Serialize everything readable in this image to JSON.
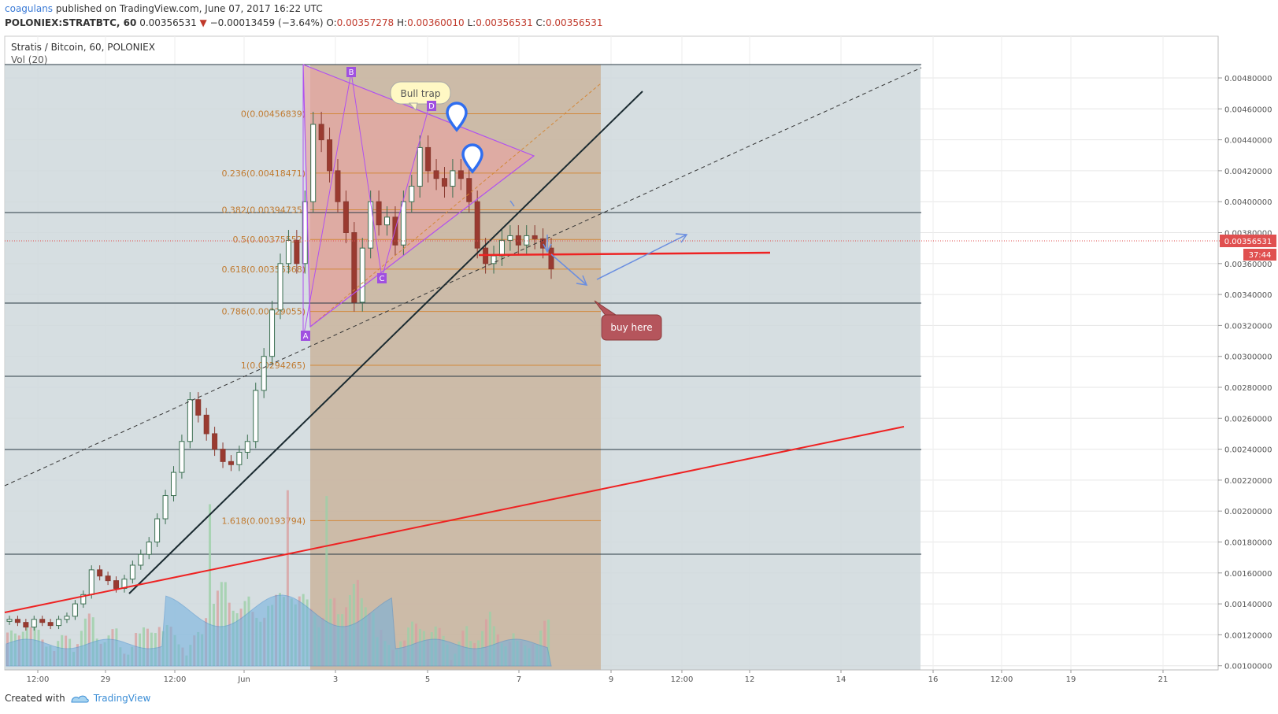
{
  "header": {
    "author": "coagulans",
    "published": "published on TradingView.com, June 07, 2017 16:22 UTC",
    "symbol": "POLONIEX:STRATBTC, 60",
    "last": "0.00356531",
    "change_arrow": "▼",
    "change": "−0.00013459 (−3.64%)",
    "o_label": "O:",
    "o": "0.00357278",
    "h_label": "H:",
    "h": "0.00360010",
    "l_label": "L:",
    "l": "0.00356531",
    "c_label": "C:",
    "c": "0.00356531"
  },
  "chart_title": "Stratis / Bitcoin, 60, POLONIEX",
  "vol_label": "Vol (20)",
  "price_axis": {
    "ticks": [
      "0.00480000",
      "0.00460000",
      "0.00440000",
      "0.00420000",
      "0.00400000",
      "0.00380000",
      "0.00360000",
      "0.00340000",
      "0.00320000",
      "0.00300000",
      "0.00280000",
      "0.00260000",
      "0.00240000",
      "0.00220000",
      "0.00200000",
      "0.00180000",
      "0.00160000",
      "0.00140000",
      "0.00120000",
      "0.00100000"
    ],
    "current_price_label": "0.00356531",
    "countdown": "37:44"
  },
  "time_axis": {
    "ticks": [
      "12:00",
      "29",
      "12:00",
      "Jun",
      "3",
      "5",
      "7",
      "9",
      "12:00",
      "12",
      "14",
      "16",
      "12:00",
      "19",
      "21"
    ]
  },
  "fib": [
    {
      "label": "0(0.00456839)"
    },
    {
      "label": "0.236(0.00418471)"
    },
    {
      "label": "0.382(0.00394735)"
    },
    {
      "label": "0.5(0.00375552)"
    },
    {
      "label": "0.618(0.00356368)"
    },
    {
      "label": "0.786(0.00329055)"
    },
    {
      "label": "1(0.00294265)"
    },
    {
      "label": "1.618(0.00193794)"
    }
  ],
  "annotations": {
    "bull_trap": "Bull trap",
    "buy_here": "buy here",
    "point_b": "B",
    "point_c": "C",
    "point_d": "D",
    "point_a": "A"
  },
  "colors": {
    "up": "#53b987",
    "down": "#eb4d5c",
    "fib": "#d2883a",
    "trend": "#1a2a30",
    "red_line": "#ee2222",
    "triangle": "#b050f0",
    "arrow": "#6a8ee0",
    "marker": "#2f6ef0"
  },
  "footer": {
    "created_with": "Created with",
    "brand": "TradingView"
  },
  "chart_data": {
    "type": "candlestick",
    "title": "Stratis / Bitcoin, 60, POLONIEX",
    "y_axis_range": [
      0.0009,
      0.0049
    ],
    "candles_approx_close": [
      0.0013,
      0.00128,
      0.00125,
      0.0013,
      0.00128,
      0.00126,
      0.0013,
      0.00132,
      0.0014,
      0.00146,
      0.00162,
      0.00158,
      0.00155,
      0.0015,
      0.00156,
      0.00165,
      0.00172,
      0.0018,
      0.00195,
      0.0021,
      0.00225,
      0.00245,
      0.00272,
      0.00262,
      0.0025,
      0.0024,
      0.00232,
      0.0023,
      0.00238,
      0.00245,
      0.00278,
      0.003,
      0.0033,
      0.0036,
      0.00375,
      0.0036,
      0.004,
      0.0045,
      0.0044,
      0.0042,
      0.004,
      0.0038,
      0.00335,
      0.0037,
      0.004,
      0.00385,
      0.0039,
      0.00372,
      0.004,
      0.0041,
      0.00435,
      0.0042,
      0.00415,
      0.0041,
      0.0042,
      0.00415,
      0.004,
      0.0037,
      0.0036,
      0.00365,
      0.00375,
      0.00378,
      0.00372,
      0.00378,
      0.00376,
      0.0037,
      0.00356531
    ]
  }
}
